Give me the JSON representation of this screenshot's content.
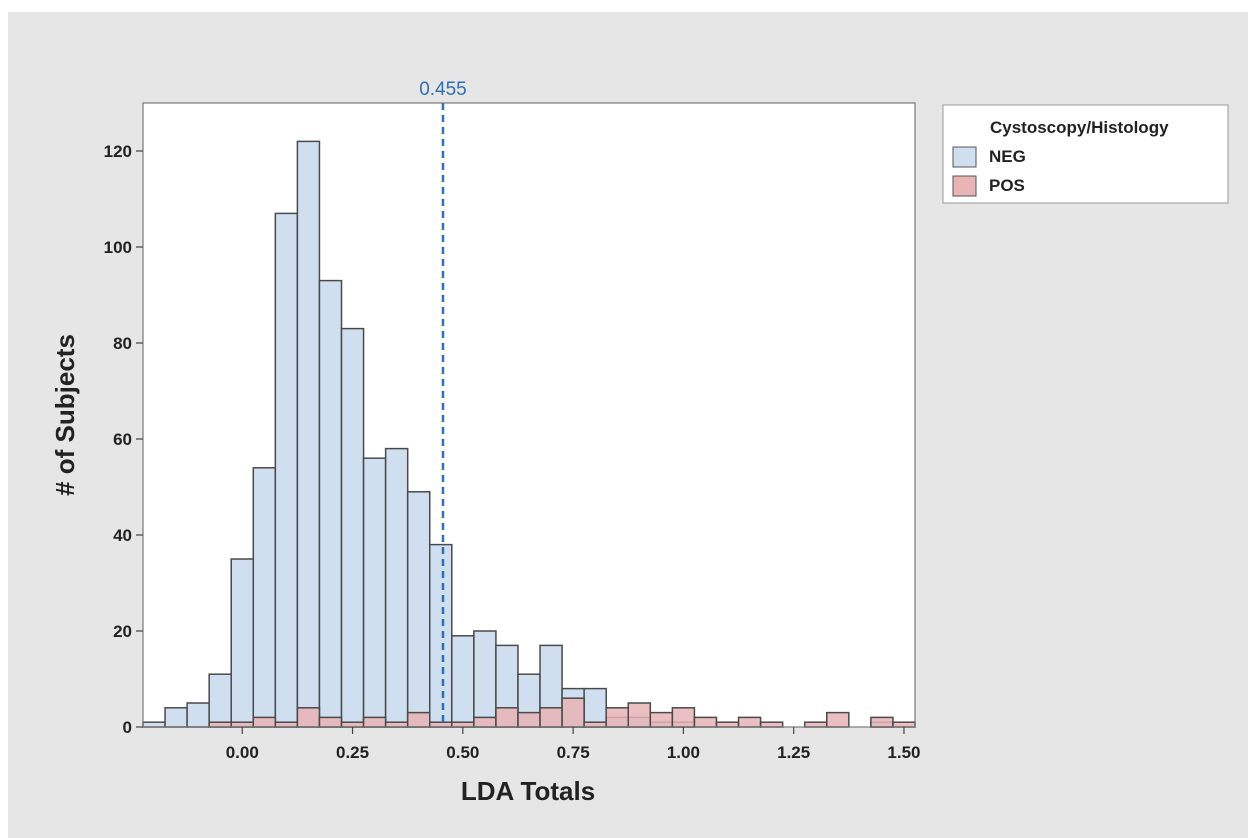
{
  "chart_data": {
    "type": "bar",
    "subtype": "histogram-overlaid",
    "xlabel": "LDA Totals",
    "ylabel": "# of Subjects",
    "xlim": [
      -0.225,
      1.525
    ],
    "ylim": [
      0,
      130
    ],
    "bin_width": 0.05,
    "bin_starts": [
      -0.225,
      -0.175,
      -0.125,
      -0.075,
      -0.025,
      0.025,
      0.075,
      0.125,
      0.175,
      0.225,
      0.275,
      0.325,
      0.375,
      0.425,
      0.475,
      0.525,
      0.575,
      0.625,
      0.675,
      0.725,
      0.775,
      0.825,
      0.875,
      0.925,
      0.975,
      1.025,
      1.075,
      1.125,
      1.175,
      1.225,
      1.275,
      1.325,
      1.375,
      1.425,
      1.475
    ],
    "x_ticks": [
      "0.00",
      "0.25",
      "0.50",
      "0.75",
      "1.00",
      "1.25",
      "1.50"
    ],
    "x_tick_values": [
      0,
      0.25,
      0.5,
      0.75,
      1.0,
      1.25,
      1.5
    ],
    "y_ticks": [
      "0",
      "20",
      "40",
      "60",
      "80",
      "100",
      "120"
    ],
    "y_tick_values": [
      0,
      20,
      40,
      60,
      80,
      100,
      120
    ],
    "series": [
      {
        "name": "NEG",
        "color": "#cfdff0",
        "values": [
          1,
          4,
          5,
          11,
          35,
          54,
          107,
          122,
          93,
          83,
          56,
          58,
          49,
          38,
          19,
          20,
          17,
          11,
          17,
          8,
          8,
          2,
          2,
          1,
          1,
          0,
          0,
          0,
          0,
          0,
          0,
          0,
          0,
          1,
          0
        ]
      },
      {
        "name": "POS",
        "color": "#e8b4b6",
        "values": [
          0,
          0,
          0,
          1,
          1,
          2,
          1,
          4,
          2,
          1,
          2,
          1,
          3,
          1,
          1,
          2,
          4,
          3,
          4,
          6,
          1,
          4,
          5,
          3,
          4,
          2,
          1,
          2,
          1,
          0,
          1,
          3,
          0,
          2,
          1
        ]
      }
    ],
    "reference_line": {
      "value": 0.455,
      "label": "0.455",
      "color": "#2f6fb3",
      "style": "dashed"
    },
    "legend": {
      "title": "Cystoscopy/Histology",
      "placement": "right-top",
      "items": [
        "NEG",
        "POS"
      ]
    },
    "grid": false,
    "background_color": "#e6e6e6",
    "plot_background_color": "#ffffff"
  }
}
